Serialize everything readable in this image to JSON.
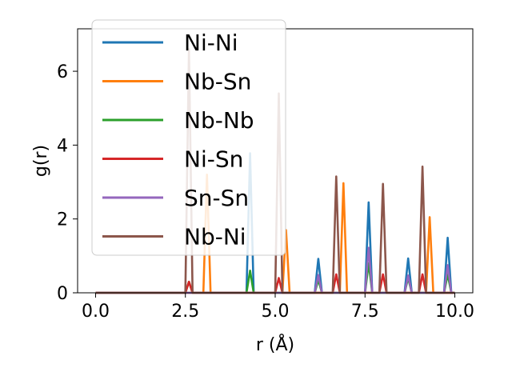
{
  "chart_data": {
    "type": "line",
    "xlabel": "r (Å)",
    "ylabel": "g(r)",
    "xlim": [
      -0.5,
      10.5
    ],
    "ylim": [
      0,
      7.15
    ],
    "xticks": [
      0.0,
      2.5,
      5.0,
      7.5,
      10.0
    ],
    "xtick_labels": [
      "0.0",
      "2.5",
      "5.0",
      "7.5",
      "10.0"
    ],
    "yticks": [
      0,
      2,
      4,
      6
    ],
    "ytick_labels": [
      "0",
      "2",
      "4",
      "6"
    ],
    "grid": false,
    "legend_position": "upper-left",
    "series": [
      {
        "name": "Ni-Ni",
        "color": "#1f77b4",
        "peaks": [
          [
            4.3,
            3.78
          ],
          [
            6.2,
            0.92
          ],
          [
            7.6,
            2.45
          ],
          [
            8.7,
            0.93
          ],
          [
            9.8,
            1.49
          ]
        ]
      },
      {
        "name": "Nb-Sn",
        "color": "#ff7f0e",
        "peaks": [
          [
            3.1,
            3.2
          ],
          [
            5.3,
            1.7
          ],
          [
            6.9,
            2.97
          ],
          [
            9.3,
            2.05
          ]
        ]
      },
      {
        "name": "Nb-Nb",
        "color": "#2ca02c",
        "peaks": [
          [
            2.6,
            0.3
          ],
          [
            4.3,
            0.6
          ],
          [
            6.2,
            0.35
          ],
          [
            7.6,
            0.8
          ],
          [
            8.7,
            0.4
          ],
          [
            9.8,
            0.5
          ]
        ]
      },
      {
        "name": "Ni-Sn",
        "color": "#d62728",
        "peaks": [
          [
            2.6,
            0.3
          ],
          [
            5.1,
            0.4
          ],
          [
            6.7,
            0.5
          ],
          [
            8.0,
            0.5
          ],
          [
            9.1,
            0.5
          ]
        ]
      },
      {
        "name": "Sn-Sn",
        "color": "#9467bd",
        "peaks": [
          [
            6.2,
            0.48
          ],
          [
            7.6,
            1.22
          ],
          [
            8.7,
            0.47
          ],
          [
            9.8,
            0.75
          ]
        ]
      },
      {
        "name": "Nb-Ni",
        "color": "#8c564b",
        "peaks": [
          [
            2.6,
            6.6
          ],
          [
            5.1,
            5.4
          ],
          [
            6.7,
            3.15
          ],
          [
            8.0,
            2.95
          ],
          [
            9.1,
            3.42
          ]
        ]
      }
    ]
  }
}
